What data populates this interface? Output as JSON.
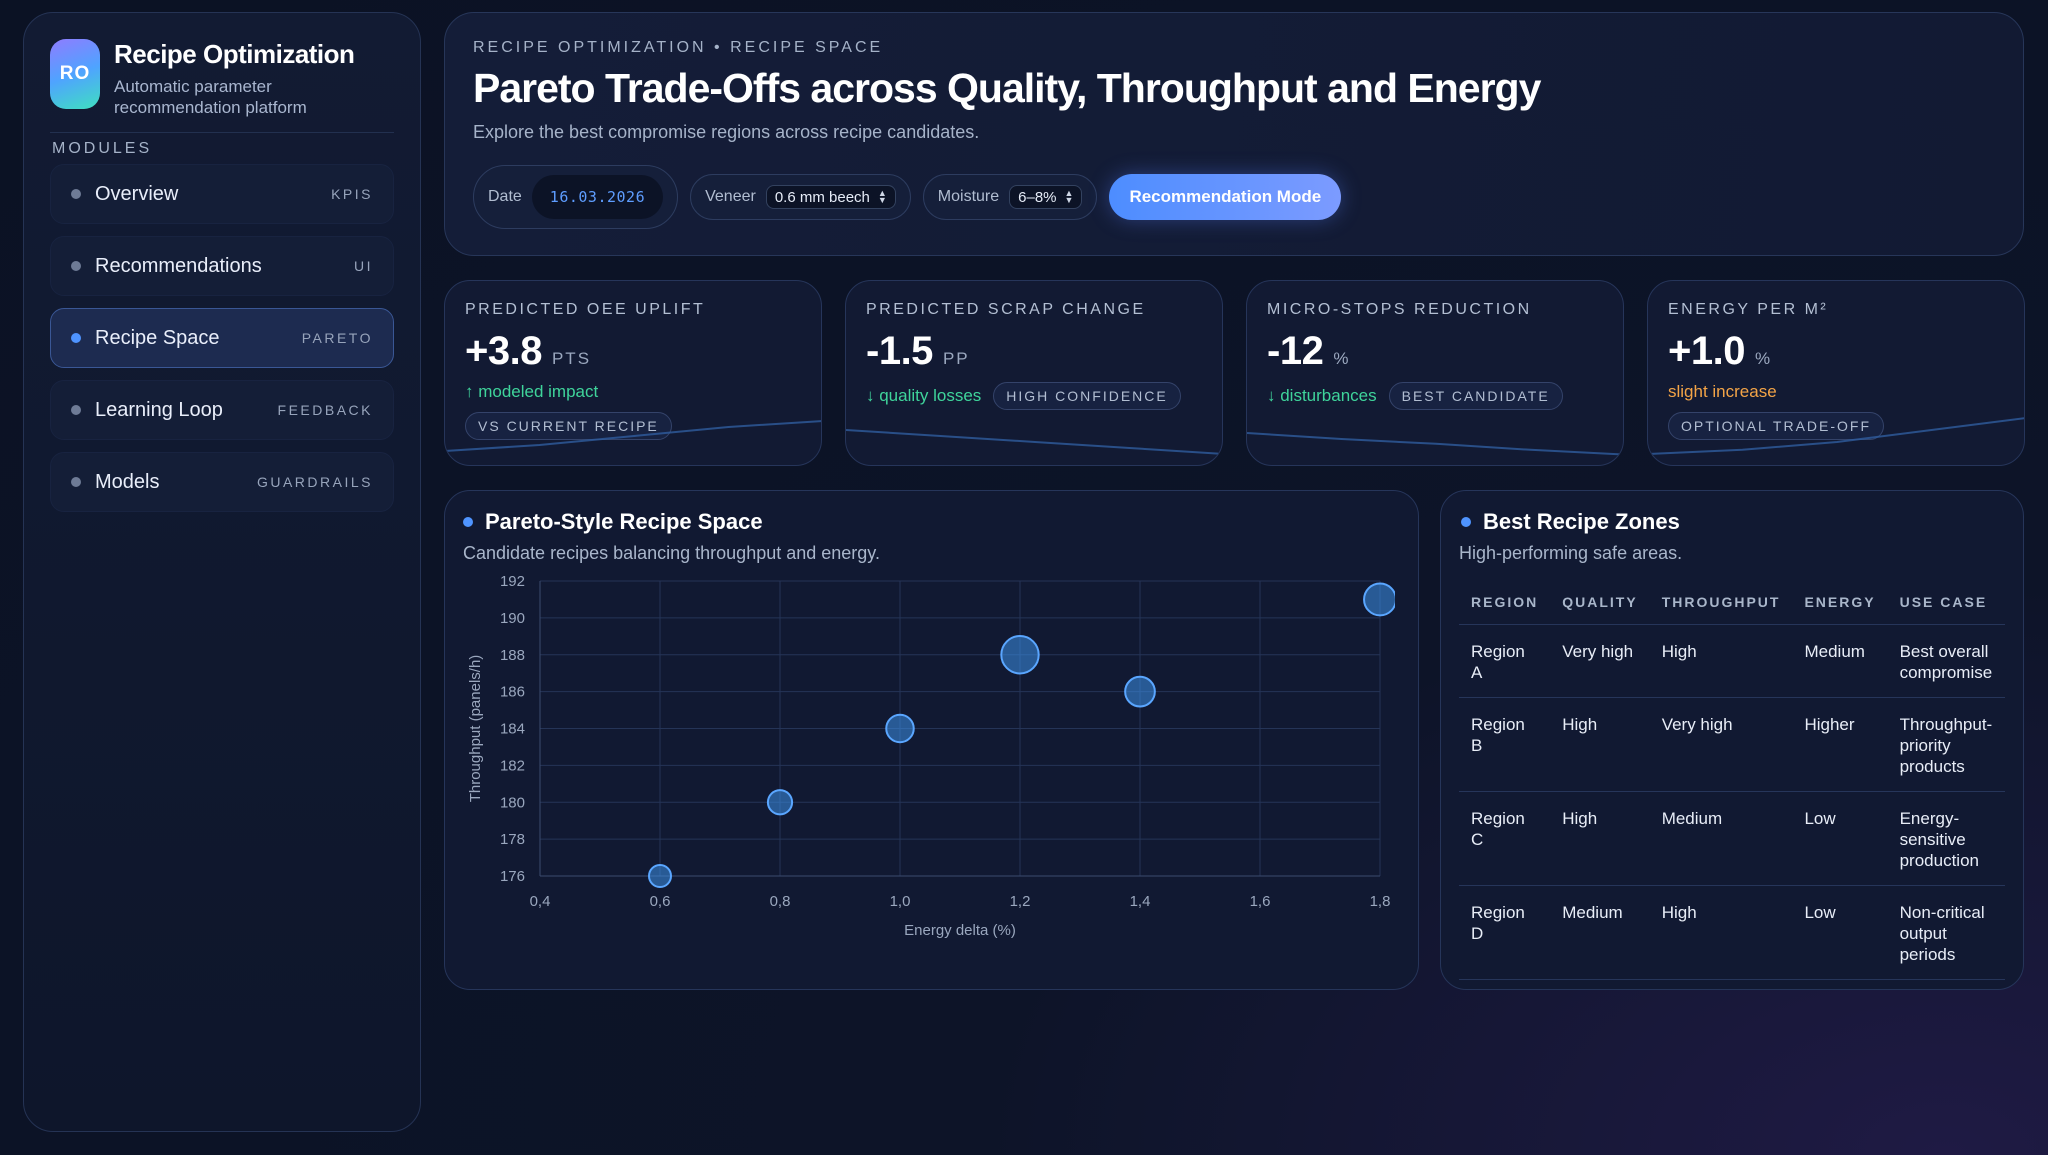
{
  "brand": {
    "logo": "RO",
    "title": "Recipe Optimization",
    "subtitle": "Automatic parameter recommendation platform"
  },
  "sidebar": {
    "section_label": "MODULES",
    "items": [
      {
        "label": "Overview",
        "tag": "KPIS",
        "active": false
      },
      {
        "label": "Recommendations",
        "tag": "UI",
        "active": false
      },
      {
        "label": "Recipe Space",
        "tag": "PARETO",
        "active": true
      },
      {
        "label": "Learning Loop",
        "tag": "FEEDBACK",
        "active": false
      },
      {
        "label": "Models",
        "tag": "GUARDRAILS",
        "active": false
      }
    ]
  },
  "header": {
    "eyebrow": "RECIPE OPTIMIZATION • RECIPE SPACE",
    "title": "Pareto Trade-Offs across Quality, Throughput and Energy",
    "subtitle": "Explore the best compromise regions across recipe candidates.",
    "date_label": "Date",
    "date_value": "16.03.2026",
    "veneer_label": "Veneer",
    "veneer_value": "0.6 mm beech",
    "moisture_label": "Moisture",
    "moisture_value": "6–8%",
    "mode_button": "Recommendation Mode"
  },
  "kpis": [
    {
      "label": "PREDICTED OEE UPLIFT",
      "value": "+3.8",
      "unit": "PTS",
      "note": "↑ modeled impact",
      "note_color": "green",
      "badge": "VS CURRENT RECIPE",
      "trend": [
        0.1,
        0.2,
        0.35,
        0.5,
        0.6
      ]
    },
    {
      "label": "PREDICTED SCRAP CHANGE",
      "value": "-1.5",
      "unit": "PP",
      "note": "↓ quality losses",
      "note_color": "green",
      "badge": "HIGH CONFIDENCE",
      "trend": [
        0.45,
        0.35,
        0.25,
        0.15,
        0.05
      ]
    },
    {
      "label": "MICRO-STOPS REDUCTION",
      "value": "-12",
      "unit": "%",
      "note": "↓ disturbances",
      "note_color": "green",
      "badge": "BEST CANDIDATE",
      "trend": [
        0.4,
        0.3,
        0.22,
        0.12,
        0.04
      ]
    },
    {
      "label": "ENERGY PER M²",
      "value": "+1.0",
      "unit": "%",
      "note": "slight increase",
      "note_color": "orange",
      "badge": "OPTIONAL TRADE-OFF",
      "trend": [
        0.05,
        0.12,
        0.25,
        0.45,
        0.65
      ]
    }
  ],
  "pareto_panel": {
    "title": "Pareto-Style Recipe Space",
    "subtitle": "Candidate recipes balancing throughput and energy."
  },
  "chart_data": {
    "type": "scatter",
    "title": "Pareto-Style Recipe Space",
    "xlabel": "Energy delta (%)",
    "ylabel": "Throughput (panels/h)",
    "xlim": [
      0.4,
      1.8
    ],
    "ylim": [
      176,
      192
    ],
    "xticks": [
      "0,4",
      "0,6",
      "0,8",
      "1,0",
      "1,2",
      "1,4",
      "1,6",
      "1,8"
    ],
    "yticks": [
      "176",
      "178",
      "180",
      "182",
      "184",
      "186",
      "188",
      "190",
      "192"
    ],
    "points": [
      {
        "x": 0.6,
        "y": 176,
        "size": 1
      },
      {
        "x": 0.8,
        "y": 180,
        "size": 1.1
      },
      {
        "x": 1.0,
        "y": 184,
        "size": 1.25
      },
      {
        "x": 1.2,
        "y": 188,
        "size": 1.7
      },
      {
        "x": 1.4,
        "y": 186,
        "size": 1.35
      },
      {
        "x": 1.8,
        "y": 191,
        "size": 1.45
      }
    ],
    "grid": true,
    "color": "#3d8fe8"
  },
  "zones_panel": {
    "title": "Best Recipe Zones",
    "subtitle": "High-performing safe areas.",
    "columns": [
      "REGION",
      "QUALITY",
      "THROUGHPUT",
      "ENERGY",
      "USE CASE"
    ],
    "rows": [
      [
        "Region A",
        "Very high",
        "High",
        "Medium",
        "Best overall compromise"
      ],
      [
        "Region B",
        "High",
        "Very high",
        "Higher",
        "Throughput-priority products"
      ],
      [
        "Region C",
        "High",
        "Medium",
        "Low",
        "Energy-sensitive production"
      ],
      [
        "Region D",
        "Medium",
        "High",
        "Low",
        "Non-critical output periods"
      ]
    ]
  },
  "colors": {
    "accent": "#4f94ff",
    "positive": "#3fd49b",
    "warning": "#f3a447"
  }
}
